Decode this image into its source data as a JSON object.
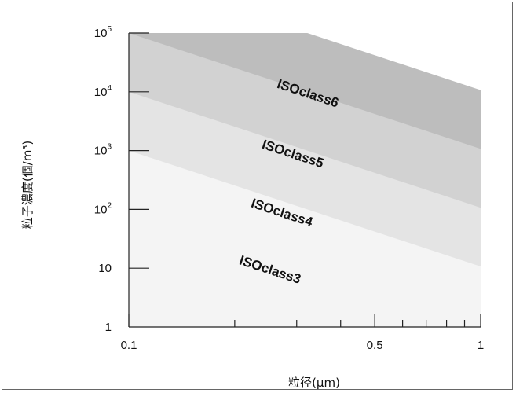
{
  "chart_data": {
    "type": "area",
    "title": "",
    "xlabel": "粒径(μm)",
    "ylabel": "粒子濃度(個/m³)",
    "xscale": "log",
    "yscale": "log",
    "xlim": [
      0.1,
      1
    ],
    "ylim": [
      1,
      100000
    ],
    "x_tick_labels": [
      {
        "value": 0.1,
        "label": "0.1"
      },
      {
        "value": 0.5,
        "label": "0.5"
      },
      {
        "value": 1,
        "label": "1"
      }
    ],
    "x_minor_ticks": [
      0.2,
      0.3,
      0.4,
      0.6,
      0.7,
      0.8,
      0.9
    ],
    "y_ticks": [
      {
        "value": 1,
        "base": "1",
        "exp": ""
      },
      {
        "value": 10,
        "base": "10",
        "exp": ""
      },
      {
        "value": 100,
        "base": "10",
        "exp": "2"
      },
      {
        "value": 1000,
        "base": "10",
        "exp": "3"
      },
      {
        "value": 10000,
        "base": "10",
        "exp": "4"
      },
      {
        "value": 100000,
        "base": "10",
        "exp": "5"
      }
    ],
    "grid": false,
    "series": [
      {
        "name": "ISOclass3",
        "x": [
          0.1,
          1
        ],
        "y": [
          1000,
          10.7
        ],
        "color": "#f4f4f4"
      },
      {
        "name": "ISOclass4",
        "x": [
          0.1,
          1
        ],
        "y": [
          10000,
          107
        ],
        "color": "#e4e4e4"
      },
      {
        "name": "ISOclass5",
        "x": [
          0.1,
          1
        ],
        "y": [
          100000,
          1070
        ],
        "color": "#d2d2d2"
      },
      {
        "name": "ISOclass6",
        "x": [
          0.1,
          1
        ],
        "y": [
          1000000,
          10700
        ],
        "color": "#bdbdbd"
      }
    ],
    "band_labels": [
      {
        "text": "ISOclass6",
        "x": 0.32,
        "y": 8000
      },
      {
        "text": "ISOclass5",
        "x": 0.29,
        "y": 750
      },
      {
        "text": "ISOclass4",
        "x": 0.27,
        "y": 75
      },
      {
        "text": "ISOclass3",
        "x": 0.25,
        "y": 8
      }
    ]
  }
}
